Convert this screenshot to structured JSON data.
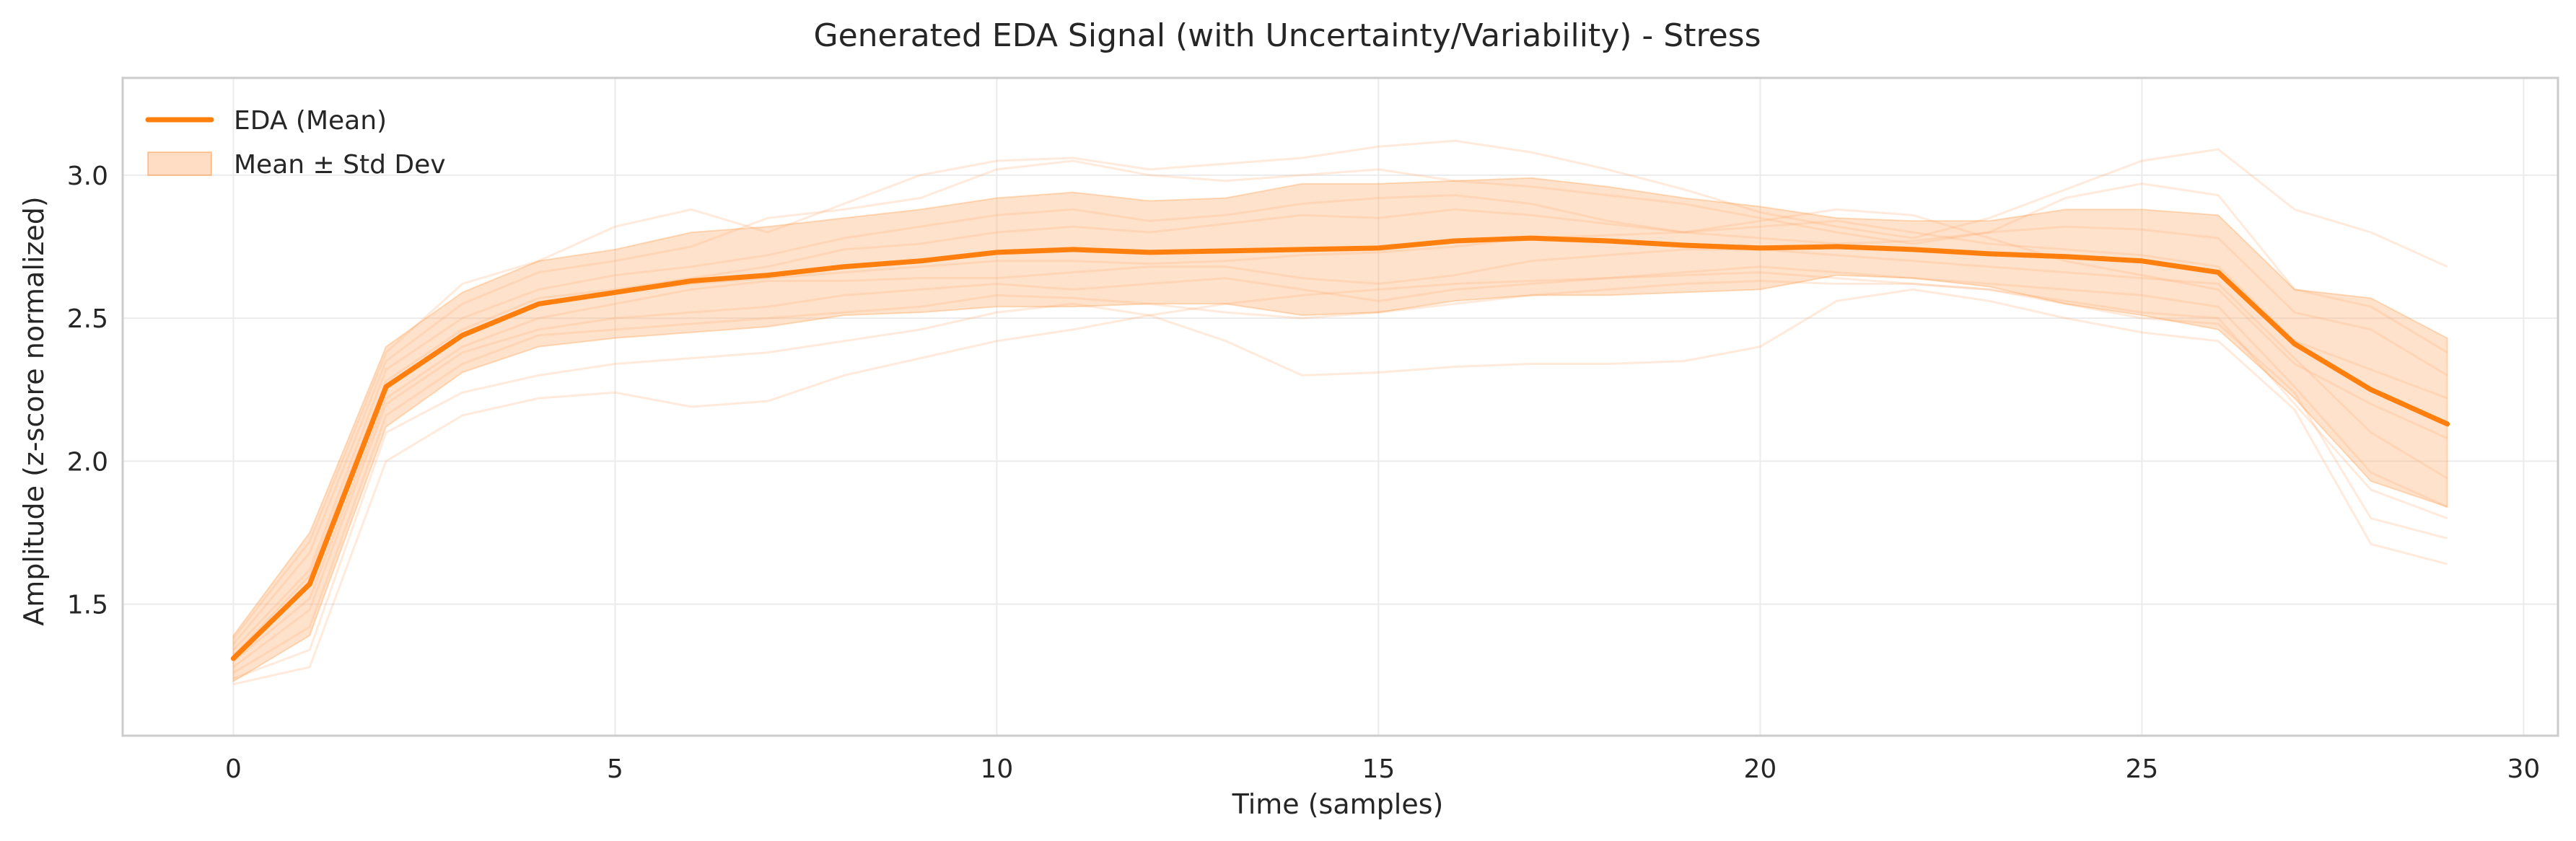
{
  "chart_data": {
    "type": "line",
    "title": "Generated EDA Signal (with Uncertainty/Variability) - Stress",
    "xlabel": "Time (samples)",
    "ylabel": "Amplitude (z-score normalized)",
    "xlim": [
      -1.45,
      30.45
    ],
    "ylim": [
      1.04,
      3.34
    ],
    "xticks": [
      0,
      5,
      10,
      15,
      20,
      25,
      30
    ],
    "yticks": [
      1.5,
      2.0,
      2.5,
      3.0
    ],
    "grid": true,
    "legend_position": "upper-left",
    "colors": {
      "mean_line": "#ff7f0e",
      "band_fill": "#ffb27a",
      "band_edge": "#ff7f0e",
      "sample_line": "#ffa060",
      "grid": "#ebebeb",
      "spine": "#cccccc"
    },
    "x": [
      0,
      1,
      2,
      3,
      4,
      5,
      6,
      7,
      8,
      9,
      10,
      11,
      12,
      13,
      14,
      15,
      16,
      17,
      18,
      19,
      20,
      21,
      22,
      23,
      24,
      25,
      26,
      27,
      28,
      29
    ],
    "series": [
      {
        "name": "EDA (Mean)",
        "role": "mean",
        "values": [
          1.31,
          1.57,
          2.26,
          2.44,
          2.55,
          2.59,
          2.63,
          2.65,
          2.68,
          2.7,
          2.73,
          2.74,
          2.73,
          2.735,
          2.74,
          2.745,
          2.77,
          2.78,
          2.77,
          2.755,
          2.745,
          2.75,
          2.74,
          2.725,
          2.715,
          2.7,
          2.66,
          2.41,
          2.25,
          2.13
        ]
      },
      {
        "name": "Mean ± Std Dev",
        "role": "band",
        "upper": [
          1.39,
          1.75,
          2.4,
          2.59,
          2.7,
          2.74,
          2.8,
          2.82,
          2.85,
          2.88,
          2.92,
          2.94,
          2.91,
          2.92,
          2.97,
          2.97,
          2.98,
          2.99,
          2.96,
          2.92,
          2.89,
          2.85,
          2.84,
          2.84,
          2.88,
          2.88,
          2.86,
          2.6,
          2.57,
          2.43
        ],
        "lower": [
          1.23,
          1.39,
          2.12,
          2.31,
          2.4,
          2.43,
          2.45,
          2.47,
          2.51,
          2.52,
          2.54,
          2.54,
          2.55,
          2.55,
          2.51,
          2.52,
          2.56,
          2.58,
          2.58,
          2.59,
          2.6,
          2.65,
          2.64,
          2.61,
          2.55,
          2.51,
          2.46,
          2.22,
          1.93,
          1.84
        ]
      }
    ],
    "sample_traces": [
      [
        1.38,
        1.72,
        2.38,
        2.62,
        2.7,
        2.82,
        2.88,
        2.8,
        2.9,
        3.0,
        3.05,
        3.06,
        3.02,
        3.04,
        3.06,
        3.1,
        3.12,
        3.08,
        3.02,
        2.95,
        2.87,
        2.82,
        2.78,
        2.85,
        2.95,
        3.05,
        3.09,
        2.88,
        2.8,
        2.68
      ],
      [
        1.36,
        1.68,
        2.35,
        2.55,
        2.66,
        2.7,
        2.75,
        2.85,
        2.88,
        2.92,
        3.02,
        3.05,
        3.0,
        2.98,
        3.0,
        3.02,
        2.98,
        2.96,
        2.93,
        2.9,
        2.85,
        2.8,
        2.76,
        2.8,
        2.92,
        2.97,
        2.93,
        2.6,
        2.54,
        2.38
      ],
      [
        1.34,
        1.62,
        2.32,
        2.5,
        2.6,
        2.65,
        2.68,
        2.72,
        2.78,
        2.82,
        2.86,
        2.88,
        2.84,
        2.86,
        2.9,
        2.92,
        2.93,
        2.9,
        2.84,
        2.8,
        2.78,
        2.76,
        2.77,
        2.8,
        2.82,
        2.81,
        2.78,
        2.52,
        2.46,
        2.3
      ],
      [
        1.32,
        1.6,
        2.28,
        2.46,
        2.57,
        2.6,
        2.64,
        2.68,
        2.74,
        2.76,
        2.8,
        2.82,
        2.8,
        2.83,
        2.86,
        2.85,
        2.88,
        2.86,
        2.83,
        2.8,
        2.82,
        2.84,
        2.8,
        2.76,
        2.74,
        2.72,
        2.68,
        2.42,
        2.32,
        2.22
      ],
      [
        1.31,
        1.58,
        2.26,
        2.44,
        2.55,
        2.59,
        2.62,
        2.64,
        2.66,
        2.68,
        2.7,
        2.7,
        2.69,
        2.7,
        2.72,
        2.73,
        2.75,
        2.78,
        2.79,
        2.8,
        2.84,
        2.88,
        2.86,
        2.78,
        2.7,
        2.65,
        2.6,
        2.34,
        2.2,
        2.08
      ],
      [
        1.3,
        1.52,
        2.22,
        2.4,
        2.5,
        2.55,
        2.6,
        2.63,
        2.63,
        2.64,
        2.64,
        2.66,
        2.68,
        2.68,
        2.64,
        2.62,
        2.65,
        2.7,
        2.72,
        2.74,
        2.74,
        2.72,
        2.7,
        2.68,
        2.66,
        2.64,
        2.62,
        2.36,
        2.1,
        1.94
      ],
      [
        1.28,
        1.48,
        2.2,
        2.38,
        2.46,
        2.5,
        2.52,
        2.54,
        2.58,
        2.6,
        2.62,
        2.6,
        2.62,
        2.64,
        2.6,
        2.56,
        2.6,
        2.62,
        2.64,
        2.66,
        2.68,
        2.66,
        2.64,
        2.62,
        2.6,
        2.58,
        2.54,
        2.26,
        1.96,
        1.84
      ],
      [
        1.26,
        1.42,
        2.16,
        2.34,
        2.44,
        2.46,
        2.48,
        2.5,
        2.52,
        2.54,
        2.58,
        2.57,
        2.55,
        2.52,
        2.5,
        2.52,
        2.55,
        2.58,
        2.6,
        2.62,
        2.63,
        2.62,
        2.62,
        2.6,
        2.55,
        2.5,
        2.48,
        2.24,
        1.8,
        1.73
      ],
      [
        1.24,
        1.34,
        2.1,
        2.24,
        2.3,
        2.34,
        2.36,
        2.38,
        2.42,
        2.46,
        2.52,
        2.55,
        2.51,
        2.42,
        2.3,
        2.31,
        2.33,
        2.34,
        2.34,
        2.35,
        2.4,
        2.56,
        2.6,
        2.56,
        2.5,
        2.45,
        2.42,
        2.18,
        1.71,
        1.64
      ],
      [
        1.22,
        1.28,
        2.0,
        2.16,
        2.22,
        2.24,
        2.19,
        2.21,
        2.3,
        2.36,
        2.42,
        2.46,
        2.51,
        2.55,
        2.58,
        2.6,
        2.62,
        2.63,
        2.64,
        2.65,
        2.66,
        2.64,
        2.62,
        2.6,
        2.56,
        2.52,
        2.5,
        2.2,
        1.9,
        1.8
      ]
    ],
    "legend": [
      {
        "label": "EDA (Mean)",
        "kind": "line"
      },
      {
        "label": "Mean ± Std Dev",
        "kind": "patch"
      }
    ]
  }
}
